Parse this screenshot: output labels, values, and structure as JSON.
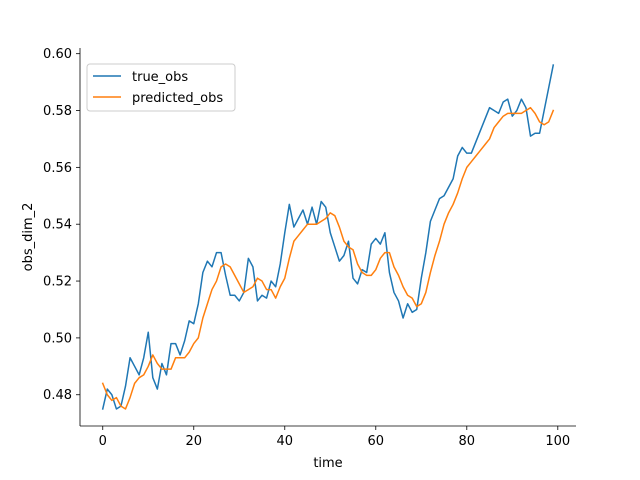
{
  "chart_data": {
    "type": "line",
    "xlabel": "time",
    "ylabel": "obs_dim_2",
    "xlim": [
      -5,
      104
    ],
    "ylim": [
      0.469,
      0.602
    ],
    "xticks": [
      0,
      20,
      40,
      60,
      80,
      100
    ],
    "xtick_labels": [
      "0",
      "20",
      "40",
      "60",
      "80",
      "100"
    ],
    "yticks": [
      0.48,
      0.5,
      0.52,
      0.54,
      0.56,
      0.58,
      0.6
    ],
    "ytick_labels": [
      "0.48",
      "0.50",
      "0.52",
      "0.54",
      "0.56",
      "0.58",
      "0.60"
    ],
    "grid": false,
    "legend_position": "upper-left",
    "series": [
      {
        "name": "true_obs",
        "color": "#1f77b4",
        "x": [
          0,
          1,
          2,
          3,
          4,
          5,
          6,
          7,
          8,
          9,
          10,
          11,
          12,
          13,
          14,
          15,
          16,
          17,
          18,
          19,
          20,
          21,
          22,
          23,
          24,
          25,
          26,
          27,
          28,
          29,
          30,
          31,
          32,
          33,
          34,
          35,
          36,
          37,
          38,
          39,
          40,
          41,
          42,
          43,
          44,
          45,
          46,
          47,
          48,
          49,
          50,
          51,
          52,
          53,
          54,
          55,
          56,
          57,
          58,
          59,
          60,
          61,
          62,
          63,
          64,
          65,
          66,
          67,
          68,
          69,
          70,
          71,
          72,
          73,
          74,
          75,
          76,
          77,
          78,
          79,
          80,
          81,
          82,
          83,
          84,
          85,
          86,
          87,
          88,
          89,
          90,
          91,
          92,
          93,
          94,
          95,
          96,
          97,
          98,
          99
        ],
        "y": [
          0.475,
          0.482,
          0.48,
          0.475,
          0.476,
          0.483,
          0.493,
          0.49,
          0.487,
          0.493,
          0.502,
          0.486,
          0.482,
          0.491,
          0.487,
          0.498,
          0.498,
          0.494,
          0.499,
          0.506,
          0.505,
          0.512,
          0.523,
          0.527,
          0.525,
          0.53,
          0.53,
          0.522,
          0.515,
          0.515,
          0.513,
          0.516,
          0.528,
          0.525,
          0.513,
          0.515,
          0.514,
          0.52,
          0.518,
          0.526,
          0.537,
          0.547,
          0.539,
          0.542,
          0.545,
          0.54,
          0.546,
          0.54,
          0.548,
          0.546,
          0.537,
          0.532,
          0.527,
          0.529,
          0.534,
          0.521,
          0.519,
          0.524,
          0.523,
          0.533,
          0.535,
          0.533,
          0.537,
          0.523,
          0.516,
          0.513,
          0.507,
          0.512,
          0.509,
          0.51,
          0.521,
          0.53,
          0.541,
          0.545,
          0.549,
          0.55,
          0.553,
          0.556,
          0.564,
          0.567,
          0.565,
          0.565,
          0.569,
          0.573,
          0.577,
          0.581,
          0.58,
          0.579,
          0.583,
          0.584,
          0.578,
          0.58,
          0.584,
          0.581,
          0.571,
          0.572,
          0.572,
          0.58,
          0.588,
          0.596
        ]
      },
      {
        "name": "predicted_obs",
        "color": "#ff7f0e",
        "x": [
          0,
          1,
          2,
          3,
          4,
          5,
          6,
          7,
          8,
          9,
          10,
          11,
          12,
          13,
          14,
          15,
          16,
          17,
          18,
          19,
          20,
          21,
          22,
          23,
          24,
          25,
          26,
          27,
          28,
          29,
          30,
          31,
          32,
          33,
          34,
          35,
          36,
          37,
          38,
          39,
          40,
          41,
          42,
          43,
          44,
          45,
          46,
          47,
          48,
          49,
          50,
          51,
          52,
          53,
          54,
          55,
          56,
          57,
          58,
          59,
          60,
          61,
          62,
          63,
          64,
          65,
          66,
          67,
          68,
          69,
          70,
          71,
          72,
          73,
          74,
          75,
          76,
          77,
          78,
          79,
          80,
          81,
          82,
          83,
          84,
          85,
          86,
          87,
          88,
          89,
          90,
          91,
          92,
          93,
          94,
          95,
          96,
          97,
          98,
          99
        ],
        "y": [
          0.484,
          0.48,
          0.478,
          0.479,
          0.476,
          0.475,
          0.479,
          0.484,
          0.486,
          0.487,
          0.49,
          0.494,
          0.491,
          0.489,
          0.489,
          0.489,
          0.493,
          0.493,
          0.493,
          0.495,
          0.498,
          0.5,
          0.507,
          0.512,
          0.517,
          0.52,
          0.525,
          0.526,
          0.525,
          0.522,
          0.519,
          0.516,
          0.517,
          0.518,
          0.521,
          0.52,
          0.517,
          0.517,
          0.514,
          0.518,
          0.521,
          0.528,
          0.534,
          0.536,
          0.538,
          0.54,
          0.54,
          0.54,
          0.541,
          0.542,
          0.544,
          0.543,
          0.539,
          0.534,
          0.532,
          0.531,
          0.526,
          0.523,
          0.522,
          0.522,
          0.524,
          0.528,
          0.53,
          0.53,
          0.525,
          0.522,
          0.518,
          0.515,
          0.514,
          0.511,
          0.512,
          0.516,
          0.523,
          0.529,
          0.534,
          0.54,
          0.544,
          0.547,
          0.551,
          0.556,
          0.56,
          0.562,
          0.564,
          0.566,
          0.568,
          0.57,
          0.574,
          0.576,
          0.578,
          0.579,
          0.579,
          0.579,
          0.579,
          0.58,
          0.581,
          0.579,
          0.576,
          0.575,
          0.576,
          0.58
        ]
      }
    ]
  }
}
